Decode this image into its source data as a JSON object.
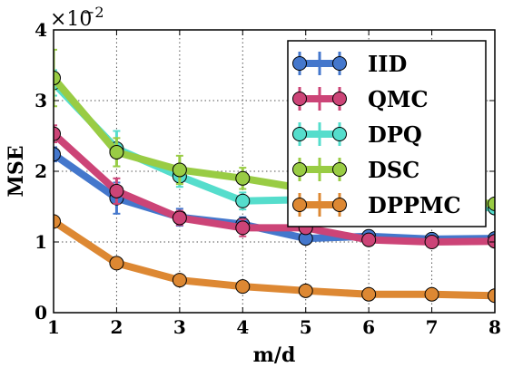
{
  "chart_data": {
    "type": "line",
    "xlabel": "m/d",
    "ylabel": "MSE",
    "y_scale_label": "×10",
    "y_scale_exponent": "−2",
    "xlim": [
      1,
      8
    ],
    "ylim": [
      0,
      4
    ],
    "xticks": [
      "1",
      "2",
      "3",
      "4",
      "5",
      "6",
      "7",
      "8"
    ],
    "yticks": [
      "0",
      "1",
      "2",
      "3",
      "4"
    ],
    "x": [
      1,
      2,
      3,
      4,
      5,
      6,
      7,
      8
    ],
    "grid": "dotted",
    "legend_position": "top-right",
    "series": [
      {
        "name": "IID",
        "color": "#4477cc",
        "values": [
          2.24,
          1.62,
          1.35,
          1.25,
          1.05,
          1.08,
          1.04,
          1.05
        ],
        "errors": [
          0.1,
          0.22,
          0.12,
          0.1,
          0.05,
          0.05,
          0.05,
          0.05
        ]
      },
      {
        "name": "QMC",
        "color": "#cc4477",
        "values": [
          2.53,
          1.72,
          1.34,
          1.2,
          1.2,
          1.03,
          1.0,
          1.01
        ],
        "errors": [
          0.12,
          0.18,
          0.1,
          0.12,
          0.04,
          0.04,
          0.03,
          0.03
        ]
      },
      {
        "name": "DPQ",
        "color": "#55ddcc",
        "values": [
          3.25,
          2.32,
          1.93,
          1.58,
          1.6,
          1.55,
          1.52,
          1.48
        ],
        "errors": [
          0.18,
          0.25,
          0.15,
          0.12,
          0.06,
          0.06,
          0.06,
          0.06
        ]
      },
      {
        "name": "DSC",
        "color": "#99cc44",
        "values": [
          3.32,
          2.27,
          2.02,
          1.9,
          1.75,
          1.65,
          1.6,
          1.54
        ],
        "errors": [
          0.4,
          0.2,
          0.2,
          0.15,
          0.08,
          0.06,
          0.06,
          0.06
        ]
      },
      {
        "name": "DPPMC",
        "color": "#dd8833",
        "values": [
          1.29,
          0.7,
          0.46,
          0.37,
          0.31,
          0.26,
          0.26,
          0.24
        ],
        "errors": [
          0.06,
          0.03,
          0.02,
          0.02,
          0.01,
          0.01,
          0.01,
          0.01
        ]
      }
    ]
  }
}
